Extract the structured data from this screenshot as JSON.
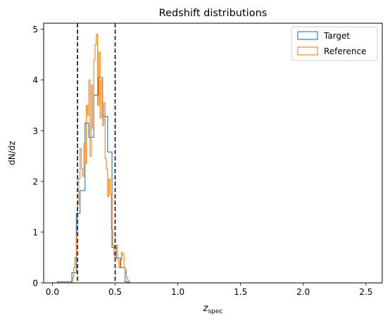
{
  "chart_data": {
    "type": "histogram-step",
    "title": "Redshift distributions",
    "xlabel_main": "z",
    "xlabel_sub": "spec",
    "ylabel": "dN/dz",
    "xlim": [
      -0.07,
      2.63
    ],
    "ylim": [
      0,
      5.12
    ],
    "xticks": [
      0.0,
      0.5,
      1.0,
      1.5,
      2.0,
      2.5
    ],
    "xtick_labels": [
      "0.0",
      "0.5",
      "1.0",
      "1.5",
      "2.0",
      "2.5"
    ],
    "yticks": [
      0,
      1,
      2,
      3,
      4,
      5
    ],
    "ytick_labels": [
      "0",
      "1",
      "2",
      "3",
      "4",
      "5"
    ],
    "vlines": [
      0.2,
      0.5
    ],
    "vline_style": "dashed",
    "vline_color": "#000000",
    "grid": false,
    "legend_position": "top-right",
    "series": [
      {
        "name": "Target",
        "color": "#1f77b4",
        "bin_edges": [
          0.04,
          0.07,
          0.1,
          0.13,
          0.155,
          0.19,
          0.22,
          0.26,
          0.29,
          0.33,
          0.365,
          0.4,
          0.44,
          0.475,
          0.51,
          0.545,
          0.58,
          0.615,
          0.65
        ],
        "values": [
          0.02,
          0.02,
          0.02,
          0.02,
          0.2,
          1.37,
          1.82,
          3.15,
          2.87,
          3.7,
          4.05,
          3.28,
          2.58,
          0.7,
          0.49,
          0.3,
          0.02,
          0.0
        ]
      },
      {
        "name": "Reference",
        "color": "#ff7f0e",
        "bin_edges": [
          0.16,
          0.17,
          0.18,
          0.19,
          0.2,
          0.21,
          0.22,
          0.23,
          0.24,
          0.25,
          0.26,
          0.27,
          0.28,
          0.29,
          0.3,
          0.31,
          0.32,
          0.33,
          0.34,
          0.35,
          0.36,
          0.37,
          0.38,
          0.39,
          0.4,
          0.41,
          0.42,
          0.43,
          0.44,
          0.45,
          0.46,
          0.47,
          0.48,
          0.49,
          0.5,
          0.51,
          0.52,
          0.53,
          0.54,
          0.55,
          0.56,
          0.57,
          0.58,
          0.59,
          0.6,
          0.61,
          0.62,
          0.63
        ],
        "values": [
          0.1,
          0.3,
          0.5,
          0.95,
          1.55,
          2.05,
          2.65,
          2.25,
          2.1,
          2.75,
          2.35,
          3.5,
          3.3,
          4.0,
          2.5,
          3.9,
          3.05,
          4.4,
          4.7,
          4.9,
          3.5,
          4.55,
          3.25,
          4.0,
          3.1,
          3.55,
          2.45,
          2.25,
          1.7,
          2.05,
          1.75,
          1.05,
          0.75,
          0.55,
          0.5,
          0.75,
          0.45,
          0.3,
          0.45,
          0.6,
          0.55,
          0.3,
          0.25,
          0.1,
          0.05,
          0.0,
          0.0
        ]
      }
    ]
  }
}
